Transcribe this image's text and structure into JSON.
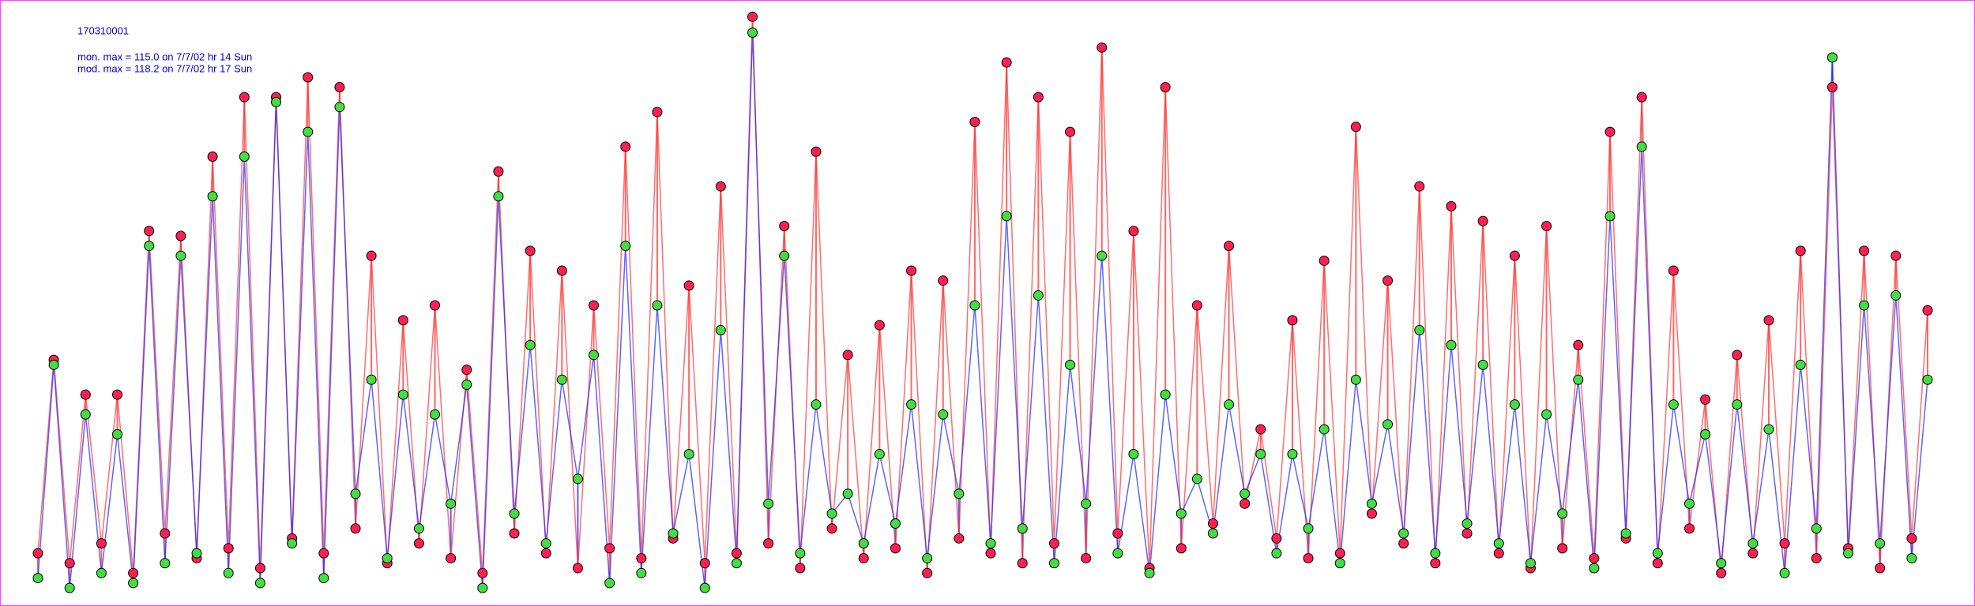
{
  "chart_data": {
    "type": "line",
    "title": "170310001",
    "annotations": [
      "mon. max =  115.0 on 7/7/02 hr 14 Sun",
      "mod. max =  118.2 on 7/7/02 hr 17 Sun"
    ],
    "ylim": [
      0,
      120
    ],
    "above_color": "#ff4040",
    "below_color": "#3030ff",
    "series": [
      {
        "color": "#ff3030",
        "marker_color": "#ff2050",
        "values": [
          10,
          49,
          8,
          42,
          12,
          42,
          6,
          75,
          14,
          74,
          9,
          90,
          11,
          102,
          7,
          102,
          13,
          106,
          10,
          104,
          15,
          70,
          8,
          57,
          12,
          60,
          9,
          47,
          6,
          87,
          14,
          71,
          10,
          67,
          7,
          60,
          11,
          92,
          9,
          99,
          13,
          64,
          8,
          84,
          10,
          118.2,
          12,
          76,
          7,
          91,
          15,
          50,
          9,
          56,
          11,
          67,
          6,
          65,
          13,
          97,
          10,
          109,
          8,
          102,
          12,
          95,
          9,
          112,
          14,
          75,
          7,
          104,
          11,
          60,
          16,
          72,
          20,
          35,
          13,
          57,
          9,
          69,
          10,
          96,
          18,
          65,
          12,
          84,
          8,
          80,
          14,
          77,
          10,
          70,
          7,
          76,
          11,
          52,
          9,
          95,
          13,
          102,
          8,
          67,
          15,
          41,
          6,
          50,
          10,
          57,
          12,
          71,
          9,
          104,
          11,
          71,
          7,
          70,
          13,
          59
        ]
      },
      {
        "color": "#2020ff",
        "marker_color": "#44dd44",
        "values": [
          5,
          48,
          3,
          38,
          6,
          34,
          4,
          72,
          8,
          70,
          10,
          82,
          6,
          90,
          4,
          101,
          12,
          95,
          5,
          100,
          22,
          45,
          9,
          42,
          15,
          38,
          20,
          44,
          3,
          82,
          18,
          52,
          12,
          45,
          25,
          50,
          4,
          72,
          6,
          60,
          14,
          30,
          3,
          55,
          8,
          115.0,
          20,
          70,
          10,
          40,
          18,
          22,
          12,
          30,
          16,
          40,
          9,
          38,
          22,
          60,
          12,
          78,
          15,
          62,
          8,
          48,
          20,
          70,
          10,
          30,
          6,
          42,
          18,
          25,
          14,
          40,
          22,
          30,
          10,
          30,
          15,
          35,
          8,
          45,
          20,
          36,
          14,
          55,
          10,
          52,
          16,
          48,
          12,
          40,
          8,
          38,
          18,
          45,
          7,
          78,
          14,
          92,
          10,
          40,
          20,
          34,
          8,
          40,
          12,
          35,
          6,
          48,
          15,
          110,
          10,
          60,
          12,
          62,
          9,
          45
        ]
      }
    ]
  }
}
